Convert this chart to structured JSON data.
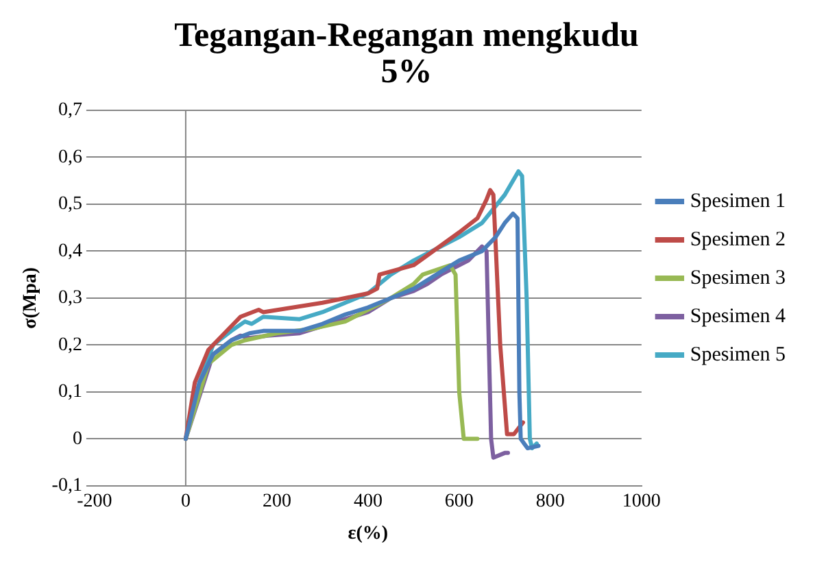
{
  "chart_data": {
    "type": "line",
    "title": [
      "Tegangan-Regangan mengkudu",
      "5%"
    ],
    "xlabel": "ε(%)",
    "ylabel": "σ(Mpa)",
    "xlim": [
      -200,
      1000
    ],
    "xticks": [
      -200,
      0,
      200,
      400,
      600,
      800,
      1000
    ],
    "ylim": [
      -0.1,
      0.7
    ],
    "yticks": [
      {
        "value": -0.1,
        "label": "-0,1"
      },
      {
        "value": 0,
        "label": "0"
      },
      {
        "value": 0.1,
        "label": "0,1"
      },
      {
        "value": 0.2,
        "label": "0,2"
      },
      {
        "value": 0.3,
        "label": "0,3"
      },
      {
        "value": 0.4,
        "label": "0,4"
      },
      {
        "value": 0.5,
        "label": "0,5"
      },
      {
        "value": 0.6,
        "label": "0,6"
      },
      {
        "value": 0.7,
        "label": "0,7"
      }
    ],
    "grid": "y",
    "legend": "right",
    "marker": "none",
    "line_style": "solid",
    "ref_lines": [
      {
        "axis": "x",
        "value": 0,
        "color": "#868686"
      }
    ],
    "series": [
      {
        "name": "Spesimen 1",
        "color": "#4a7ebb",
        "x": [
          0,
          30,
          60,
          100,
          140,
          170,
          250,
          300,
          350,
          400,
          450,
          500,
          550,
          600,
          650,
          680,
          700,
          718,
          728,
          732,
          735,
          750,
          774
        ],
        "values": [
          0,
          0.12,
          0.18,
          0.21,
          0.225,
          0.23,
          0.23,
          0.245,
          0.265,
          0.28,
          0.3,
          0.32,
          0.35,
          0.38,
          0.4,
          0.43,
          0.46,
          0.48,
          0.47,
          0.1,
          0,
          -0.02,
          -0.015
        ]
      },
      {
        "name": "Spesimen 2",
        "color": "#be4b48",
        "x": [
          0,
          20,
          50,
          100,
          120,
          160,
          170,
          300,
          400,
          420,
          425,
          500,
          600,
          640,
          660,
          668,
          675,
          690,
          705,
          720,
          740
        ],
        "values": [
          0,
          0.12,
          0.19,
          0.24,
          0.26,
          0.275,
          0.27,
          0.29,
          0.31,
          0.32,
          0.35,
          0.37,
          0.44,
          0.47,
          0.51,
          0.53,
          0.52,
          0.2,
          0.01,
          0.01,
          0.035
        ]
      },
      {
        "name": "Spesimen 3",
        "color": "#98b954",
        "x": [
          0,
          50,
          100,
          130,
          200,
          280,
          350,
          450,
          500,
          520,
          580,
          592,
          600,
          610,
          640
        ],
        "values": [
          0,
          0.16,
          0.2,
          0.21,
          0.225,
          0.235,
          0.25,
          0.3,
          0.33,
          0.35,
          0.37,
          0.35,
          0.1,
          0,
          0
        ]
      },
      {
        "name": "Spesimen 4",
        "color": "#7d60a0",
        "x": [
          0,
          60,
          100,
          120,
          140,
          180,
          250,
          300,
          400,
          450,
          500,
          530,
          560,
          620,
          650,
          660,
          670,
          675,
          700,
          707
        ],
        "values": [
          0,
          0.18,
          0.21,
          0.22,
          0.215,
          0.22,
          0.225,
          0.24,
          0.27,
          0.3,
          0.315,
          0.33,
          0.35,
          0.38,
          0.41,
          0.4,
          0,
          -0.04,
          -0.03,
          -0.03
        ]
      },
      {
        "name": "Spesimen 5",
        "color": "#46aac5",
        "x": [
          0,
          30,
          60,
          100,
          130,
          145,
          170,
          250,
          300,
          350,
          400,
          450,
          500,
          600,
          650,
          700,
          730,
          738,
          748,
          755,
          760,
          770
        ],
        "values": [
          0,
          0.12,
          0.2,
          0.23,
          0.25,
          0.245,
          0.26,
          0.255,
          0.27,
          0.29,
          0.31,
          0.35,
          0.38,
          0.43,
          0.46,
          0.52,
          0.57,
          0.56,
          0.3,
          0,
          -0.02,
          -0.01
        ]
      }
    ]
  }
}
